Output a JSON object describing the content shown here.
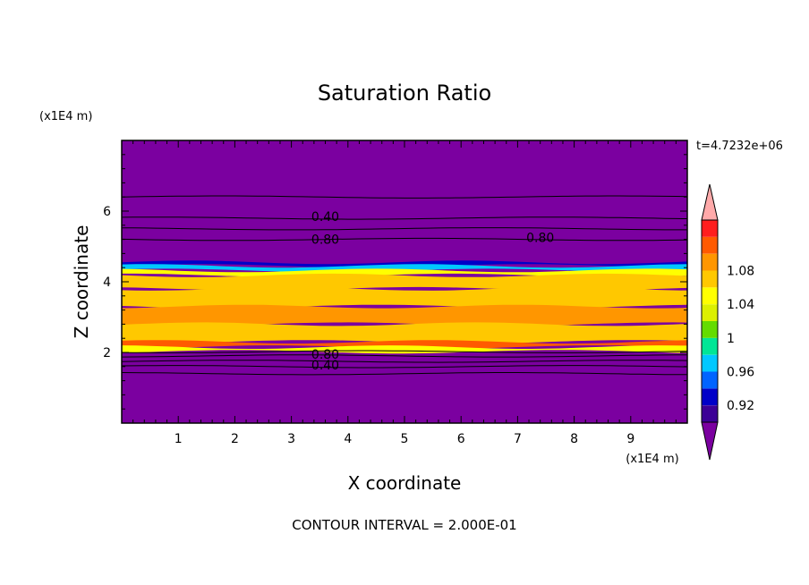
{
  "chart_data": {
    "type": "heatmap",
    "title": "Saturation Ratio",
    "xlabel": "X coordinate",
    "ylabel": "Z coordinate",
    "x_units": "(x1E4 m)",
    "y_units": "(x1E4 m)",
    "time_label": "t=4.7232e+06",
    "footer": "CONTOUR INTERVAL = 2.000E-01",
    "xlim": [
      0,
      10
    ],
    "ylim": [
      0,
      8
    ],
    "x_ticks": [
      1,
      2,
      3,
      4,
      5,
      6,
      7,
      8,
      9
    ],
    "y_ticks": [
      2,
      4,
      6
    ],
    "colorbar": {
      "colors": [
        "#7b00a0",
        "#3c0096",
        "#0000c8",
        "#0064ff",
        "#00c8ff",
        "#00e696",
        "#64dc00",
        "#dcf000",
        "#ffff00",
        "#ffc800",
        "#ff9600",
        "#ff5a00",
        "#ff1e1e",
        "#ffaaaa"
      ],
      "labels": [
        "0.92",
        "0.96",
        "1",
        "1.04",
        "1.08"
      ],
      "label_values": [
        0.92,
        0.96,
        1.0,
        1.04,
        1.08
      ],
      "min": 0.9,
      "max": 1.1,
      "step": 0.02
    },
    "contour_labels": [
      {
        "text": "0.40",
        "x": 3.6,
        "z": 5.85
      },
      {
        "text": "0.80",
        "x": 3.6,
        "z": 5.2
      },
      {
        "text": "0.80",
        "x": 7.4,
        "z": 5.25
      },
      {
        "text": "0.80",
        "x": 3.6,
        "z": 1.95
      },
      {
        "text": "0.40",
        "x": 3.6,
        "z": 1.65
      }
    ],
    "contour_levels_z": [
      6.4,
      5.8,
      5.5,
      5.2,
      2.02,
      1.9,
      1.75,
      1.6,
      1.4
    ],
    "layers": [
      {
        "z0": 4.45,
        "z1": 4.55,
        "value": 0.93
      },
      {
        "z0": 4.32,
        "z1": 4.45,
        "value": 0.97
      },
      {
        "z0": 4.18,
        "z1": 4.32,
        "value": 1.05
      },
      {
        "z0": 3.8,
        "z1": 4.18,
        "value": 1.075
      },
      {
        "z0": 3.3,
        "z1": 3.8,
        "value": 1.065
      },
      {
        "z0": 2.8,
        "z1": 3.3,
        "value": 1.08
      },
      {
        "z0": 2.3,
        "z1": 2.8,
        "value": 1.07
      },
      {
        "z0": 2.15,
        "z1": 2.3,
        "value": 1.1
      },
      {
        "z0": 2.02,
        "z1": 2.15,
        "value": 1.05
      }
    ]
  }
}
